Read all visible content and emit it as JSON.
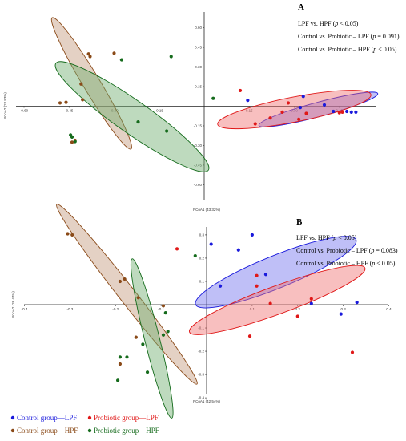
{
  "chart_data": [
    {
      "type": "scatter",
      "panel": "A",
      "xlabel": "PCoA1 (43.32%)",
      "ylabel": "PCoA2 (24.83%)",
      "xlim": [
        -0.6,
        0.6
      ],
      "ylim": [
        -0.72,
        0.72
      ],
      "xticks": [
        -0.6,
        -0.45,
        -0.3,
        -0.15,
        0.15,
        0.3,
        0.45
      ],
      "xtick_labels": [
        "-0.60",
        "-0.45",
        "-0.30",
        "-0.15",
        "0.15",
        "0.30",
        "0.45"
      ],
      "yticks": [
        0.6,
        0.45,
        0.3,
        0.15,
        -0.15,
        -0.3,
        -0.45,
        -0.6
      ],
      "ytick_labels": [
        "0.60",
        "0.45",
        "0.30",
        "0.15",
        "-0.15",
        "-0.30",
        "-0.45",
        "-0.60"
      ],
      "annotations": [
        "LPF vs. HPF (p < 0.05)",
        "Control vs. Probiotic – LPF (p = 0.091)",
        "Control vs. Probiotic – HPF (p < 0.05)"
      ],
      "series": [
        {
          "name": "Control group—LPF",
          "color": "#1a1adc",
          "fill": "#7070ee",
          "ellipse": {
            "cx": 0.38,
            "cy": -0.025,
            "rx": 0.205,
            "ry": 0.055,
            "angle": -15
          },
          "points": [
            [
              0.145,
              0.045
            ],
            [
              0.33,
              0.075
            ],
            [
              0.32,
              -0.01
            ],
            [
              0.4,
              0.01
            ],
            [
              0.43,
              -0.04
            ],
            [
              0.475,
              -0.04
            ],
            [
              0.49,
              -0.045
            ],
            [
              0.505,
              -0.045
            ]
          ]
        },
        {
          "name": "Probiotic group—LPF",
          "color": "#e01818",
          "fill": "#f07070",
          "ellipse": {
            "cx": 0.3,
            "cy": -0.025,
            "rx": 0.26,
            "ry": 0.095,
            "angle": -11
          },
          "points": [
            [
              0.12,
              0.12
            ],
            [
              0.28,
              0.025
            ],
            [
              0.22,
              -0.09
            ],
            [
              0.315,
              -0.1
            ],
            [
              0.34,
              -0.055
            ],
            [
              0.45,
              -0.05
            ],
            [
              0.46,
              -0.045
            ],
            [
              0.17,
              -0.135
            ],
            [
              0.26,
              -0.045
            ]
          ]
        },
        {
          "name": "Control group—HPF",
          "color": "#8a4a18",
          "fill": "#c49a7c",
          "ellipse": {
            "cx": -0.375,
            "cy": 0.175,
            "rx": 0.255,
            "ry": 0.065,
            "angle": 59
          },
          "points": [
            [
              -0.385,
              0.4
            ],
            [
              -0.38,
              0.38
            ],
            [
              -0.3,
              0.405
            ],
            [
              -0.41,
              0.17
            ],
            [
              -0.46,
              0.03
            ],
            [
              -0.405,
              0.05
            ],
            [
              -0.48,
              0.025
            ],
            [
              -0.44,
              -0.275
            ],
            [
              -0.43,
              -0.26
            ]
          ]
        },
        {
          "name": "Probiotic group—HPF",
          "color": "#156b1c",
          "fill": "#6fae6f",
          "ellipse": {
            "cx": -0.24,
            "cy": -0.08,
            "rx": 0.31,
            "ry": 0.125,
            "angle": 35
          },
          "points": [
            [
              -0.275,
              0.355
            ],
            [
              -0.11,
              0.38
            ],
            [
              0.03,
              0.06
            ],
            [
              -0.22,
              -0.12
            ],
            [
              -0.125,
              -0.19
            ],
            [
              -0.445,
              -0.22
            ],
            [
              -0.44,
              -0.235
            ],
            [
              -0.43,
              -0.27
            ]
          ]
        }
      ]
    },
    {
      "type": "scatter",
      "panel": "B",
      "xlabel": "PCoA1 (42.54%)",
      "ylabel": "PCoA2 (26.44%)",
      "xlim": [
        -0.4,
        0.4
      ],
      "ylim": [
        -0.4,
        0.32
      ],
      "xticks": [
        -0.4,
        -0.3,
        -0.2,
        -0.1,
        0.1,
        0.2,
        0.3,
        0.4
      ],
      "xtick_labels": [
        "-0.4",
        "-0.3",
        "-0.2",
        "-0.1",
        "0.1",
        "0.2",
        "0.3",
        "0.4"
      ],
      "yticks": [
        0.3,
        0.2,
        0.1,
        -0.1,
        -0.2,
        -0.3,
        -0.4
      ],
      "ytick_labels": [
        "0.3",
        "0.2",
        "0.1",
        "-0.1",
        "-0.2",
        "-0.3",
        "-0.4"
      ],
      "annotations": [
        "LPF vs. HPF (p < 0.05)",
        "Control vs. Probiotic – LPF (p = 0.083)",
        "Control vs. Probiotic – HPF (p < 0.05)"
      ],
      "series": [
        {
          "name": "Control group—LPF",
          "color": "#1a1adc",
          "fill": "#7070ee",
          "ellipse": {
            "cx": 0.152,
            "cy": 0.14,
            "rx": 0.19,
            "ry": 0.07,
            "angle": -22
          },
          "points": [
            [
              0.1,
              0.3
            ],
            [
              0.07,
              0.235
            ],
            [
              0.01,
              0.26
            ],
            [
              0.13,
              0.13
            ],
            [
              0.03,
              0.08
            ],
            [
              0.23,
              0.005
            ],
            [
              0.33,
              0.01
            ],
            [
              0.295,
              -0.04
            ]
          ]
        },
        {
          "name": "Probiotic group—LPF",
          "color": "#e01818",
          "fill": "#f07070",
          "ellipse": {
            "cx": 0.155,
            "cy": 0.02,
            "rx": 0.205,
            "ry": 0.06,
            "angle": -20
          },
          "points": [
            [
              -0.065,
              0.24
            ],
            [
              0.11,
              0.125
            ],
            [
              0.11,
              0.08
            ],
            [
              0.14,
              0.005
            ],
            [
              0.2,
              -0.05
            ],
            [
              0.23,
              0.025
            ],
            [
              0.095,
              -0.135
            ],
            [
              0.32,
              -0.205
            ]
          ]
        },
        {
          "name": "Control group—HPF",
          "color": "#8a4a18",
          "fill": "#c49a7c",
          "ellipse": {
            "cx": -0.175,
            "cy": 0.045,
            "rx": 0.25,
            "ry": 0.035,
            "angle": 52
          },
          "points": [
            [
              -0.305,
              0.305
            ],
            [
              -0.295,
              0.3
            ],
            [
              -0.18,
              0.11
            ],
            [
              -0.19,
              0.1
            ],
            [
              -0.15,
              0.03
            ],
            [
              -0.095,
              -0.005
            ],
            [
              -0.155,
              -0.14
            ],
            [
              -0.19,
              -0.255
            ]
          ]
        },
        {
          "name": "Probiotic group—HPF",
          "color": "#156b1c",
          "fill": "#6fae6f",
          "ellipse": {
            "cx": -0.12,
            "cy": -0.145,
            "rx": 0.18,
            "ry": 0.032,
            "angle": 76
          },
          "points": [
            [
              -0.025,
              0.21
            ],
            [
              -0.09,
              -0.035
            ],
            [
              -0.085,
              -0.115
            ],
            [
              -0.095,
              -0.13
            ],
            [
              -0.14,
              -0.17
            ],
            [
              -0.19,
              -0.225
            ],
            [
              -0.175,
              -0.225
            ],
            [
              -0.13,
              -0.29
            ],
            [
              -0.195,
              -0.325
            ]
          ]
        }
      ]
    }
  ],
  "legend": [
    {
      "label": "Control group—LPF",
      "color": "#1a1adc"
    },
    {
      "label": "Probiotic group—LPF",
      "color": "#e01818"
    },
    {
      "label": "Control group—HPF",
      "color": "#8a4a18"
    },
    {
      "label": "Probiotic group—HPF",
      "color": "#156b1c"
    }
  ]
}
